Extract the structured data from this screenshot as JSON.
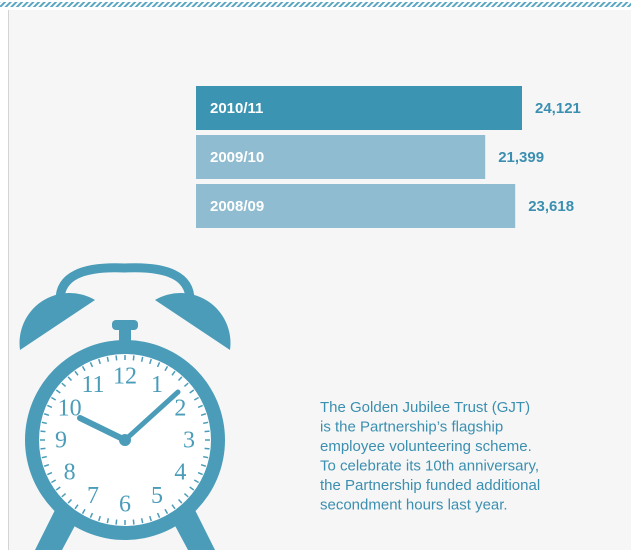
{
  "chart_data": {
    "type": "bar",
    "orientation": "horizontal",
    "categories": [
      "2010/11",
      "2009/10",
      "2008/09"
    ],
    "values": [
      24121,
      21399,
      23618
    ],
    "value_labels": [
      "24,121",
      "21,399",
      "23,618"
    ],
    "colors": [
      "#3b94b2",
      "#8fbcd0",
      "#8fbcd0"
    ]
  },
  "clock": {
    "numerals": [
      "12",
      "1",
      "2",
      "3",
      "4",
      "5",
      "6",
      "7",
      "8",
      "9",
      "10",
      "11"
    ]
  },
  "paragraph": [
    "The Golden Jubilee Trust (GJT)",
    "is the Partnership’s flagship",
    "employee volunteering scheme.",
    "To celebrate its 10th anniversary,",
    "the Partnership funded additional",
    "secondment hours last year."
  ]
}
